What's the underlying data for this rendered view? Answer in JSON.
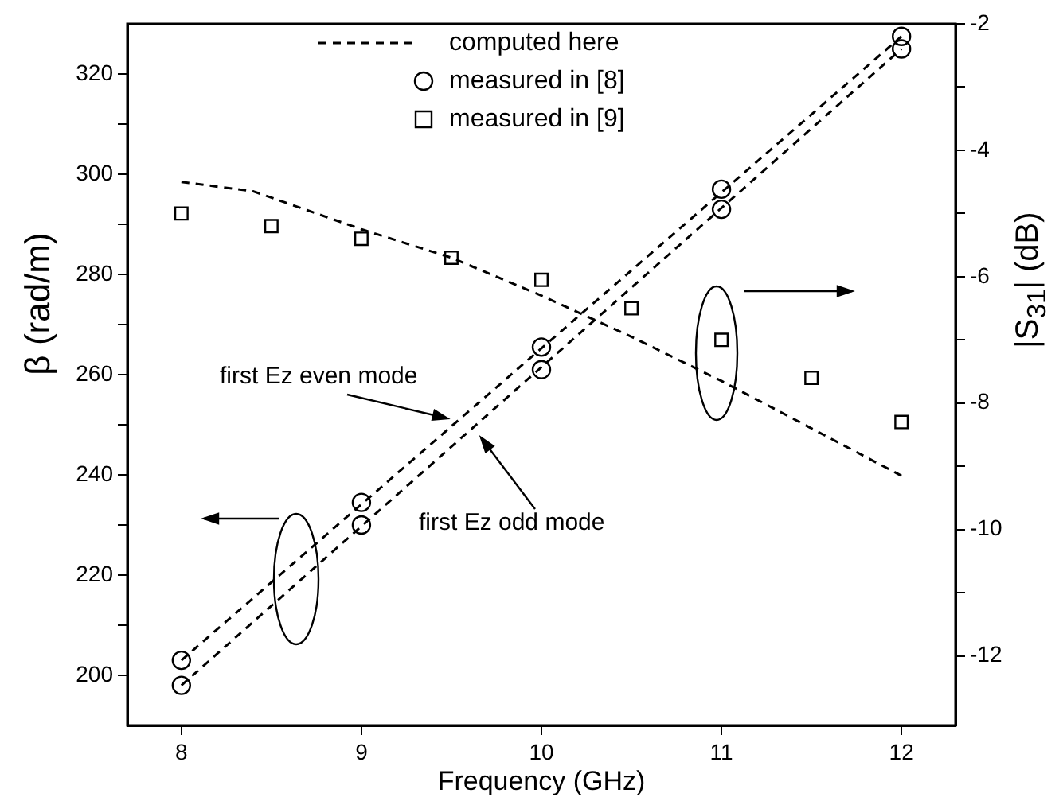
{
  "chart_data": {
    "type": "line",
    "xlabel": "Frequency (GHz)",
    "ylabel": "β (rad/m)",
    "y2label": "|S$_{31}$|   (dB)",
    "xlim": [
      7.7,
      12.3
    ],
    "xticks": [
      8,
      9,
      10,
      11,
      12
    ],
    "ylim": [
      190,
      330
    ],
    "yticks": [
      200,
      {
        "value": 210,
        "label": null
      },
      220,
      {
        "value": 230,
        "label": null
      },
      240,
      {
        "value": 250,
        "label": null
      },
      260,
      {
        "value": 270,
        "label": null
      },
      280,
      {
        "value": 290,
        "label": null
      },
      300,
      {
        "value": 310,
        "label": null
      },
      320
    ],
    "y2lim": [
      -13.1,
      -2
    ],
    "y2ticks": [
      -2,
      {
        "value": -3,
        "label": null
      },
      -4,
      {
        "value": -5,
        "label": null
      },
      -6,
      {
        "value": -7,
        "label": null
      },
      -8,
      {
        "value": -9,
        "label": null
      },
      -10,
      {
        "value": -11,
        "label": null
      },
      -12
    ],
    "legend": "top",
    "grid": false,
    "series": [
      {
        "name": "computed here",
        "line_style": "dashed",
        "marker": "none",
        "color": "#000000",
        "x": [
          8,
          12
        ],
        "values": [
          203,
          327.5
        ]
      },
      {
        "line_style": "dashed",
        "marker": "none",
        "color": "#000000",
        "x": [
          8,
          12
        ],
        "values": [
          198,
          325
        ]
      },
      {
        "line_style": "dashed",
        "marker": "none",
        "color": "#000000",
        "axis": "y2",
        "x": [
          8,
          8.4,
          9,
          9.5,
          10,
          10.5,
          11,
          11.5,
          12
        ],
        "values": [
          -4.5,
          -4.65,
          -5.25,
          -5.7,
          -6.3,
          -6.95,
          -7.65,
          -8.4,
          -9.15
        ]
      },
      {
        "name": "measured in [8]",
        "type": "scatter",
        "marker": "circle",
        "color": "#000000",
        "x": [
          8,
          9,
          10,
          11,
          12
        ],
        "values": [
          203,
          234.5,
          265.5,
          297,
          327.5
        ]
      },
      {
        "type": "scatter",
        "marker": "circle",
        "color": "#000000",
        "x": [
          8,
          9,
          10,
          11,
          12
        ],
        "values": [
          198,
          230,
          261,
          293,
          325
        ]
      },
      {
        "name": "measured in [9]",
        "type": "scatter",
        "marker": "square",
        "color": "#000000",
        "axis": "y2",
        "x": [
          8,
          8.5,
          9,
          9.5,
          10,
          10.5,
          11,
          11.5,
          12
        ],
        "values": [
          -5.0,
          -5.2,
          -5.4,
          -5.7,
          -6.05,
          -6.5,
          -7.0,
          -7.6,
          -8.3
        ]
      }
    ],
    "annotations": [
      "first Ez even mode",
      "first Ez odd mode"
    ]
  }
}
